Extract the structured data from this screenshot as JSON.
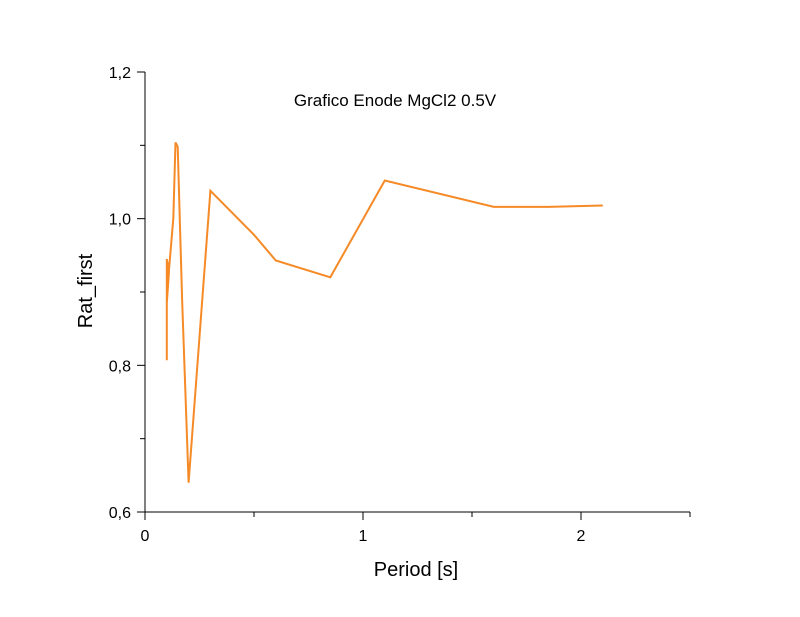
{
  "colors": {
    "series": "#F58A27",
    "axis": "#000000",
    "background": "#FFFFFF"
  },
  "chart_data": {
    "type": "line",
    "title": "Grafico Enode MgCl2 0.5V",
    "xlabel": "Period [s]",
    "ylabel": "Rat_first",
    "xlim": [
      0,
      2.5
    ],
    "ylim": [
      0.6,
      1.2
    ],
    "x_ticks": [
      0,
      1,
      2
    ],
    "x_tick_labels": [
      "0",
      "1",
      "2"
    ],
    "x_minor_ticks": [
      0.5,
      1.5,
      2.5
    ],
    "y_ticks": [
      0.6,
      0.8,
      1.0,
      1.2
    ],
    "y_tick_labels": [
      "0,6",
      "0,8",
      "1,0",
      "1,2"
    ],
    "y_minor_ticks": [
      0.7,
      0.9,
      1.1
    ],
    "grid": false,
    "legend": "none",
    "series": [
      {
        "x": [
          0.1,
          0.1,
          0.11,
          0.1,
          0.1,
          0.13,
          0.14,
          0.15,
          0.17,
          0.2,
          0.3,
          0.5,
          0.6,
          0.85,
          1.1,
          1.6,
          1.85,
          2.1
        ],
        "y": [
          0.807,
          0.945,
          0.928,
          0.885,
          0.895,
          1.0,
          1.104,
          1.098,
          0.89,
          0.64,
          1.038,
          0.978,
          0.943,
          0.92,
          1.052,
          1.016,
          1.016,
          1.018
        ]
      }
    ]
  }
}
